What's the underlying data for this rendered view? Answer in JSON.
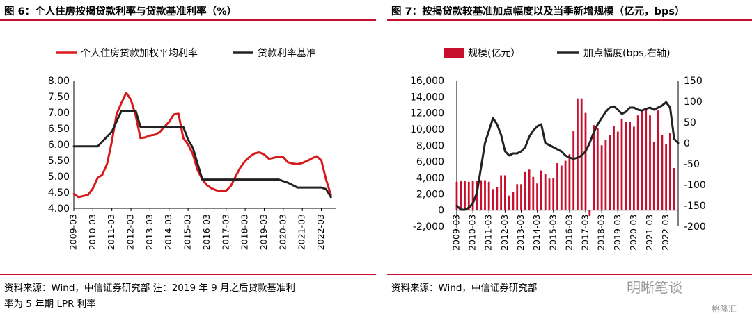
{
  "left": {
    "title": "图 6：个人住房按揭贷款利率与贷款基准利率（%）",
    "source_line1": "资料来源：Wind，中信证券研究部  注：2019 年 9 月之后贷款基准利",
    "source_line2": "率为 5 年期 LPR 利率",
    "chart_data": {
      "type": "line",
      "xtick_labels": [
        "2009-03",
        "2010-03",
        "2011-03",
        "2012-03",
        "2013-03",
        "2014-03",
        "2015-03",
        "2016-03",
        "2017-03",
        "2018-03",
        "2019-03",
        "2020-03",
        "2021-03",
        "2022-03"
      ],
      "yticks": [
        "8.00",
        "7.50",
        "7.00",
        "6.50",
        "6.00",
        "5.50",
        "5.00",
        "4.50",
        "4.00"
      ],
      "ylim": [
        4.0,
        8.0
      ],
      "x_range": [
        2009.0,
        2022.75
      ],
      "series": [
        {
          "name": "个人住房贷款加权平均利率",
          "color": "#d7191c",
          "x": [
            2009.0,
            2009.25,
            2009.75,
            2010.0,
            2010.25,
            2010.5,
            2010.75,
            2011.0,
            2011.25,
            2011.5,
            2011.75,
            2012.0,
            2012.25,
            2012.5,
            2012.75,
            2013.0,
            2013.25,
            2013.5,
            2013.75,
            2014.0,
            2014.25,
            2014.5,
            2014.75,
            2015.0,
            2015.25,
            2015.5,
            2015.75,
            2016.0,
            2016.25,
            2016.5,
            2016.75,
            2017.0,
            2017.25,
            2017.5,
            2017.75,
            2018.0,
            2018.25,
            2018.5,
            2018.75,
            2019.0,
            2019.25,
            2019.5,
            2019.75,
            2020.0,
            2020.25,
            2020.5,
            2020.75,
            2021.0,
            2021.25,
            2021.5,
            2021.75,
            2022.0,
            2022.25,
            2022.5
          ],
          "y": [
            4.45,
            4.35,
            4.42,
            4.62,
            4.95,
            5.05,
            5.4,
            6.1,
            6.95,
            7.3,
            7.62,
            7.4,
            6.9,
            6.2,
            6.22,
            6.28,
            6.3,
            6.38,
            6.55,
            6.7,
            6.94,
            6.96,
            6.2,
            6.0,
            5.7,
            5.2,
            4.9,
            4.72,
            4.62,
            4.56,
            4.54,
            4.55,
            4.7,
            5.0,
            5.28,
            5.48,
            5.62,
            5.72,
            5.75,
            5.68,
            5.55,
            5.58,
            5.62,
            5.6,
            5.44,
            5.4,
            5.38,
            5.42,
            5.48,
            5.56,
            5.63,
            5.5,
            4.9,
            4.42
          ]
        },
        {
          "name": "贷款利率基准",
          "color": "#222222",
          "x": [
            2009.0,
            2010.25,
            2011.0,
            2011.5,
            2012.0,
            2012.25,
            2012.5,
            2014.75,
            2015.0,
            2015.25,
            2015.5,
            2015.75,
            2016.0,
            2019.75,
            2020.25,
            2020.75,
            2021.0,
            2021.75,
            2022.0,
            2022.25,
            2022.5
          ],
          "y": [
            5.94,
            5.94,
            6.4,
            7.05,
            7.05,
            7.05,
            6.55,
            6.55,
            6.15,
            5.9,
            5.4,
            4.9,
            4.9,
            4.9,
            4.8,
            4.65,
            4.65,
            4.65,
            4.65,
            4.6,
            4.35
          ]
        }
      ]
    }
  },
  "right": {
    "title": "图 7：按揭贷款较基准加点幅度以及当季新增规模（亿元，bps）",
    "source_line1": "资料来源：Wind，中信证券研究部",
    "chart_data": {
      "type": "bar",
      "xtick_labels": [
        "2009-03",
        "2010-03",
        "2011-03",
        "2012-03",
        "2013-03",
        "2014-03",
        "2015-03",
        "2016-03",
        "2017-03",
        "2018-03",
        "2019-03",
        "2020-03",
        "2021-03",
        "2022-03"
      ],
      "left_yticks": [
        "16,000",
        "14,000",
        "12,000",
        "10,000",
        "8,000",
        "6,000",
        "4,000",
        "2,000",
        "0",
        "-2,000"
      ],
      "right_yticks": [
        "150",
        "100",
        "50",
        "0",
        "-50",
        "-100",
        "-150",
        "-200"
      ],
      "left_ylim": [
        -2000,
        16000
      ],
      "right_ylim": [
        -200,
        150
      ],
      "x_range": [
        2009.0,
        2022.75
      ],
      "series": [
        {
          "name": "规模(亿元）",
          "color": "#c8102e",
          "axis": "left",
          "x": [
            2009.0,
            2009.25,
            2009.5,
            2009.75,
            2010.0,
            2010.25,
            2010.5,
            2010.75,
            2011.0,
            2011.25,
            2011.5,
            2011.75,
            2012.0,
            2012.25,
            2012.5,
            2012.75,
            2013.0,
            2013.25,
            2013.5,
            2013.75,
            2014.0,
            2014.25,
            2014.5,
            2014.75,
            2015.0,
            2015.25,
            2015.5,
            2015.75,
            2016.0,
            2016.25,
            2016.5,
            2016.75,
            2017.0,
            2017.25,
            2017.5,
            2017.75,
            2018.0,
            2018.25,
            2018.5,
            2018.75,
            2019.0,
            2019.25,
            2019.5,
            2019.75,
            2020.0,
            2020.25,
            2020.5,
            2020.75,
            2021.0,
            2021.25,
            2021.5,
            2021.75,
            2022.0,
            2022.25,
            2022.5
          ],
          "y": [
            3500,
            3600,
            3600,
            3500,
            3600,
            3600,
            3700,
            3700,
            3500,
            2600,
            2800,
            4300,
            4300,
            1800,
            2200,
            3200,
            3200,
            4700,
            5000,
            4100,
            3300,
            4900,
            4500,
            3900,
            4000,
            5800,
            5500,
            6100,
            6900,
            9800,
            13800,
            13800,
            12000,
            -700,
            10500,
            10100,
            8000,
            8700,
            9300,
            10400,
            9700,
            11300,
            10900,
            10900,
            10300,
            11700,
            12200,
            12400,
            11700,
            8400,
            12300,
            9300,
            8200,
            9500,
            5200
          ]
        },
        {
          "name": "加点幅度(bps,右轴)",
          "color": "#222222",
          "axis": "right",
          "x": [
            2009.0,
            2009.25,
            2009.5,
            2009.75,
            2010.0,
            2010.25,
            2010.5,
            2010.75,
            2011.0,
            2011.25,
            2011.5,
            2011.75,
            2012.0,
            2012.25,
            2012.5,
            2012.75,
            2013.0,
            2013.25,
            2013.5,
            2013.75,
            2014.0,
            2014.25,
            2014.5,
            2014.75,
            2015.0,
            2015.25,
            2015.5,
            2015.75,
            2016.0,
            2016.25,
            2016.5,
            2016.75,
            2017.0,
            2017.25,
            2017.5,
            2017.75,
            2018.0,
            2018.25,
            2018.5,
            2018.75,
            2019.0,
            2019.25,
            2019.5,
            2019.75,
            2020.0,
            2020.25,
            2020.5,
            2020.75,
            2021.0,
            2021.25,
            2021.5,
            2021.75,
            2022.0,
            2022.25,
            2022.5,
            2022.75
          ],
          "y": [
            -150,
            -160,
            -160,
            -155,
            -145,
            -120,
            -60,
            0,
            30,
            60,
            45,
            20,
            -20,
            -30,
            -25,
            -25,
            -20,
            -10,
            15,
            30,
            40,
            45,
            0,
            -5,
            -10,
            -15,
            -20,
            -30,
            -35,
            -38,
            -35,
            -30,
            -20,
            0,
            25,
            45,
            60,
            75,
            85,
            88,
            80,
            70,
            75,
            85,
            85,
            80,
            78,
            82,
            85,
            80,
            85,
            90,
            98,
            85,
            10,
            0
          ]
        }
      ]
    }
  },
  "watermark": "明晰笔谈",
  "brand": "格隆汇"
}
